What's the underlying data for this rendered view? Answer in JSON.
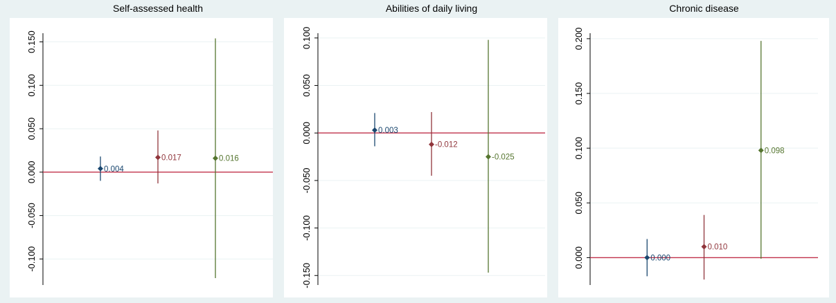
{
  "chart_data": [
    {
      "type": "scatter",
      "title": "Self-assessed health",
      "ylim": [
        -0.13,
        0.16
      ],
      "yticks": [
        -0.1,
        -0.05,
        0.0,
        0.05,
        0.1,
        0.15
      ],
      "ytick_labels": [
        "-0.100",
        "-0.050",
        "0.000",
        "0.050",
        "0.100",
        "0.150"
      ],
      "reference_line": 0.0,
      "series": [
        {
          "value": 0.004,
          "label": "0.004",
          "ci": [
            -0.01,
            0.018
          ],
          "color": "#1a476f"
        },
        {
          "value": 0.017,
          "label": "0.017",
          "ci": [
            -0.013,
            0.048
          ],
          "color": "#90353b"
        },
        {
          "value": 0.016,
          "label": "0.016",
          "ci": [
            -0.122,
            0.154
          ],
          "color": "#55752f"
        }
      ]
    },
    {
      "type": "scatter",
      "title": "Abilities of daily living",
      "ylim": [
        -0.16,
        0.105
      ],
      "yticks": [
        -0.15,
        -0.1,
        -0.05,
        0.0,
        0.05,
        0.1
      ],
      "ytick_labels": [
        "-0.150",
        "-0.100",
        "-0.050",
        "0.000",
        "0.050",
        "0.100"
      ],
      "reference_line": 0.0,
      "series": [
        {
          "value": 0.003,
          "label": "0.003",
          "ci": [
            -0.014,
            0.021
          ],
          "color": "#1a476f"
        },
        {
          "value": -0.012,
          "label": "-0.012",
          "ci": [
            -0.045,
            0.022
          ],
          "color": "#90353b"
        },
        {
          "value": -0.025,
          "label": "-0.025",
          "ci": [
            -0.147,
            0.098
          ],
          "color": "#55752f"
        }
      ]
    },
    {
      "type": "scatter",
      "title": "Chronic disease",
      "ylim": [
        -0.025,
        0.205
      ],
      "yticks": [
        0.0,
        0.05,
        0.1,
        0.15,
        0.2
      ],
      "ytick_labels": [
        "0.000",
        "0.050",
        "0.100",
        "0.150",
        "0.200"
      ],
      "reference_line": 0.0,
      "series": [
        {
          "value": 0.0,
          "label": "0.000",
          "ci": [
            -0.017,
            0.017
          ],
          "color": "#1a476f"
        },
        {
          "value": 0.01,
          "label": "0.010",
          "ci": [
            -0.02,
            0.039
          ],
          "color": "#90353b"
        },
        {
          "value": 0.098,
          "label": "0.098",
          "ci": [
            -0.001,
            0.198
          ],
          "color": "#55752f"
        }
      ]
    }
  ],
  "colors": {
    "background": "#eaf2f3",
    "plot_background": "#ffffff",
    "reference_line": "#c0304a",
    "gridline": "#eaf2f3",
    "axis": "#000000"
  }
}
